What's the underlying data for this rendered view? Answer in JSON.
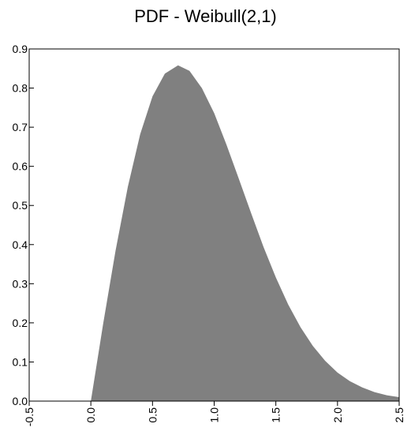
{
  "chart_data": {
    "type": "area",
    "title": "PDF - Weibull(2,1)",
    "xlabel": "",
    "ylabel": "",
    "xlim": [
      -0.5,
      2.5
    ],
    "ylim": [
      0.0,
      0.9
    ],
    "x_ticks": [
      -0.5,
      0.0,
      0.5,
      1.0,
      1.5,
      2.0,
      2.5
    ],
    "x_tick_labels": [
      "-0.5",
      "0.0",
      "0.5",
      "1.0",
      "1.5",
      "2.0",
      "2.5"
    ],
    "y_ticks": [
      0.0,
      0.1,
      0.2,
      0.3,
      0.4,
      0.5,
      0.6,
      0.7,
      0.8,
      0.9
    ],
    "y_tick_labels": [
      "0.0",
      "0.1",
      "0.2",
      "0.3",
      "0.4",
      "0.5",
      "0.6",
      "0.7",
      "0.8",
      "0.9"
    ],
    "series": [
      {
        "color": "#808080",
        "x": [
          0.0,
          0.1,
          0.2,
          0.3,
          0.4,
          0.5,
          0.6,
          0.7071,
          0.8,
          0.9,
          1.0,
          1.1,
          1.2,
          1.3,
          1.4,
          1.5,
          1.6,
          1.7,
          1.8,
          1.9,
          2.0,
          2.1,
          2.2,
          2.3,
          2.4,
          2.5
        ],
        "y": [
          0.0,
          0.198,
          0.384,
          0.548,
          0.682,
          0.779,
          0.837,
          0.858,
          0.844,
          0.8,
          0.736,
          0.655,
          0.568,
          0.48,
          0.394,
          0.316,
          0.247,
          0.189,
          0.141,
          0.103,
          0.073,
          0.051,
          0.035,
          0.023,
          0.015,
          0.01
        ]
      }
    ],
    "grid": false,
    "legend": "none"
  }
}
